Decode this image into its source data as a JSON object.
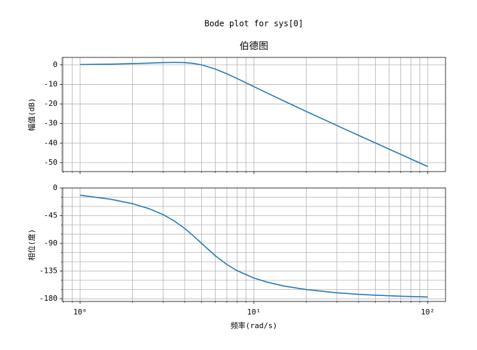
{
  "title": "Bode plot for sys[0]",
  "chart_data": [
    {
      "type": "line",
      "title": "伯德图",
      "ylabel": "幅值(dB)",
      "x": [
        1,
        1.5,
        2,
        2.5,
        3,
        3.5,
        4,
        4.5,
        5,
        6,
        7,
        8,
        10,
        12,
        15,
        20,
        30,
        40,
        50,
        70,
        100
      ],
      "values": [
        0.17,
        0.37,
        0.63,
        0.9,
        1.14,
        1.25,
        1.14,
        0.72,
        0,
        -2.13,
        -4.6,
        -6.98,
        -11.14,
        -14.54,
        -18.63,
        -23.82,
        -31.01,
        -36.06,
        -39.96,
        -45.82,
        -52.03
      ],
      "color": "#1f77b4",
      "xlog": true,
      "grid": true,
      "xlim": [
        0.79,
        126.6
      ],
      "ylim": [
        -54.6,
        3.8
      ],
      "xticks": [
        1,
        10,
        100
      ],
      "xminorticks": [
        0.8,
        0.9,
        2,
        3,
        4,
        5,
        6,
        7,
        8,
        9,
        20,
        30,
        40,
        50,
        60,
        70,
        80,
        90
      ],
      "yticks": [
        0,
        -10,
        -20,
        -30,
        -40,
        -50
      ]
    },
    {
      "type": "line",
      "xlabel": "频率(rad/s)",
      "ylabel": "相位(度)",
      "x": [
        1,
        1.5,
        2,
        2.5,
        3,
        3.5,
        4,
        4.5,
        5,
        6,
        7,
        8,
        10,
        12,
        15,
        20,
        30,
        40,
        50,
        70,
        100
      ],
      "values": [
        -11.77,
        -18.24,
        -25.46,
        -33.69,
        -43.15,
        -53.93,
        -65.77,
        -78.08,
        -90,
        -110.14,
        -124.44,
        -134.28,
        -146.31,
        -153.24,
        -159.44,
        -165.07,
        -170.27,
        -172.76,
        -174.23,
        -175.89,
        -177.13
      ],
      "color": "#1f77b4",
      "xlog": true,
      "grid": true,
      "xlim": [
        0.79,
        126.6
      ],
      "ylim": [
        -184.4,
        0
      ],
      "xticks": [
        {
          "value": 1,
          "label": "10⁰"
        },
        {
          "value": 10,
          "label": "10¹"
        },
        {
          "value": 100,
          "label": "10²"
        }
      ],
      "xminorticks": [
        0.8,
        0.9,
        2,
        3,
        4,
        5,
        6,
        7,
        8,
        9,
        20,
        30,
        40,
        50,
        60,
        70,
        80,
        90
      ],
      "yticks": [
        0,
        -45,
        -90,
        -135,
        -180
      ],
      "yminorticks": [
        -15,
        -30,
        -60,
        -75,
        -105,
        -120,
        -150,
        -165
      ]
    }
  ]
}
